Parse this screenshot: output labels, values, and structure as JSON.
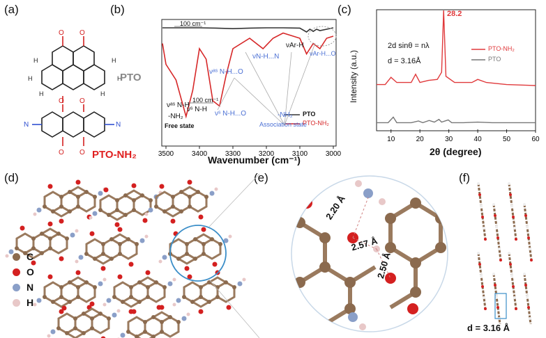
{
  "panels": {
    "a": "(a)",
    "b": "(b)",
    "c": "(c)",
    "d": "(d)",
    "e": "(e)",
    "f": "(f)"
  },
  "panel_a": {
    "pto_label": "PTO",
    "pto_nh2_label": "PTO-NH₂"
  },
  "panel_b": {
    "xlabel": "Wavenumber (cm⁻¹)",
    "xticks": [
      "3500",
      "3400",
      "3300",
      "3200",
      "3100",
      "3000"
    ],
    "scale_bar_top": "100 cm⁻¹",
    "scale_bar_bottom": "100 cm⁻¹",
    "legend": [
      "PTO",
      "PTO-NH₂"
    ],
    "annotations": {
      "v_as_free": "νᵃˢ N-H",
      "v_as_assoc": "νᵃˢ N-H...O",
      "v_s_free": "νˢ N-H",
      "v_s_assoc": "νˢ N-H...O",
      "v_nhn": "νN-H...N",
      "v_arh": "νAr-H",
      "v_arho": "νAr-H...O",
      "nh2_free": "-NH₂",
      "free_state": "Free state",
      "nh2_assoc": "-NH₂",
      "assoc_state": "Association state"
    },
    "colors": {
      "pto": "#333333",
      "pto_nh2": "#d62728",
      "annot_blue": "#4a6fd4"
    }
  },
  "panel_c": {
    "ylabel": "Intensity (a.u.)",
    "xlabel": "2θ (degree)",
    "xticks": [
      "10",
      "20",
      "30",
      "40",
      "50",
      "60"
    ],
    "equation": "2d sinθ = nλ",
    "d_value": "d = 3.16Å",
    "peak_label": "28.2",
    "legend": [
      "PTO-NH₂",
      "PTO"
    ],
    "colors": {
      "pto_nh2": "#e0393b",
      "pto": "#777777"
    }
  },
  "panel_d": {
    "legend": [
      {
        "symbol": "C",
        "color": "#8b6a4e"
      },
      {
        "symbol": "O",
        "color": "#d42020"
      },
      {
        "symbol": "N",
        "color": "#8a9fc8"
      },
      {
        "symbol": "H",
        "color": "#e8c8c8"
      }
    ]
  },
  "panel_e": {
    "distances": [
      "2.20 Å",
      "2.57 Å",
      "2.50 Å"
    ]
  },
  "panel_f": {
    "d_value": "d = 3.16 Å"
  },
  "chart_data": [
    {
      "type": "line",
      "panel": "b",
      "xlabel": "Wavenumber (cm⁻¹)",
      "xlim": [
        3500,
        3000
      ],
      "series": [
        {
          "name": "PTO",
          "x": [
            3520,
            3450,
            3400,
            3350,
            3300,
            3250,
            3200,
            3150,
            3100,
            3080,
            3070,
            3060,
            3050,
            3040,
            3000
          ],
          "y": [
            0.05,
            0.05,
            0.05,
            0.06,
            0.08,
            0.06,
            0.05,
            0.05,
            0.06,
            0.2,
            0.1,
            0.18,
            0.1,
            0.15,
            0.05
          ]
        },
        {
          "name": "PTO-NH₂",
          "x": [
            3520,
            3500,
            3470,
            3440,
            3420,
            3400,
            3380,
            3360,
            3340,
            3320,
            3300,
            3250,
            3210,
            3180,
            3150,
            3100,
            3080,
            3060,
            3040,
            3020,
            3000
          ],
          "y": [
            0.15,
            0.35,
            0.5,
            0.85,
            0.6,
            0.2,
            0.3,
            0.7,
            0.75,
            0.45,
            0.2,
            0.1,
            0.2,
            0.1,
            0.05,
            0.1,
            0.25,
            0.15,
            0.2,
            0.1,
            0.08
          ]
        }
      ]
    },
    {
      "type": "line",
      "panel": "c",
      "xlabel": "2θ (degree)",
      "ylabel": "Intensity (a.u.)",
      "xlim": [
        5,
        60
      ],
      "series": [
        {
          "name": "PTO-NH₂",
          "x": [
            5,
            8,
            10,
            12,
            15,
            17,
            18.5,
            20,
            23,
            26,
            27.5,
            28.2,
            29,
            32,
            38,
            40,
            43,
            50,
            60
          ],
          "y": [
            0.28,
            0.28,
            0.35,
            0.3,
            0.3,
            0.3,
            0.38,
            0.3,
            0.32,
            0.33,
            0.4,
            1.0,
            0.36,
            0.3,
            0.3,
            0.33,
            0.3,
            0.28,
            0.27
          ]
        },
        {
          "name": "PTO",
          "x": [
            5,
            9,
            10.8,
            12,
            17,
            19.5,
            21,
            23.2,
            25,
            26.6,
            27.5,
            29.8,
            31,
            35,
            40,
            45,
            50,
            60
          ],
          "y": [
            0.02,
            0.02,
            0.12,
            0.02,
            0.02,
            0.05,
            0.02,
            0.06,
            0.03,
            0.08,
            0.03,
            0.07,
            0.02,
            0.02,
            0.03,
            0.02,
            0.02,
            0.02
          ]
        }
      ]
    }
  ]
}
